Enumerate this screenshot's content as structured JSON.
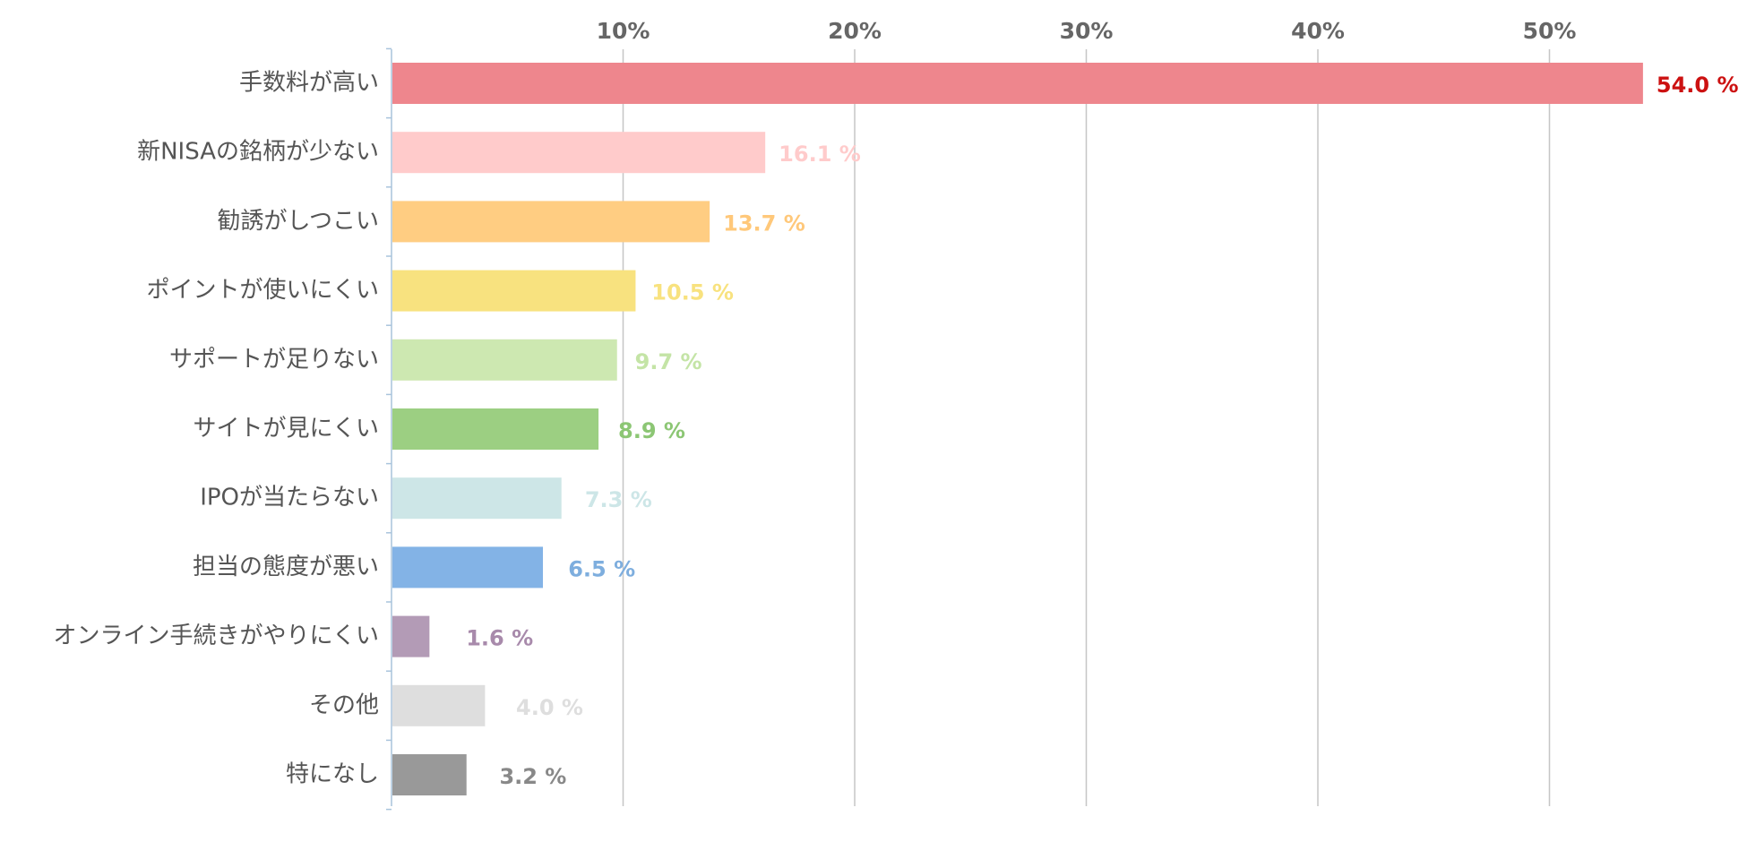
{
  "chart_data": {
    "type": "bar",
    "orientation": "horizontal",
    "title": "",
    "xlabel": "",
    "ylabel": "",
    "xlim": [
      0,
      55
    ],
    "x_ticks": [
      10,
      20,
      30,
      40,
      50
    ],
    "x_tick_labels": [
      "10%",
      "20%",
      "30%",
      "40%",
      "50%"
    ],
    "x_axis_position": "top",
    "grid": true,
    "legend": "none",
    "categories": [
      "手数料が高い",
      "新NISAの銘柄が少ない",
      "勧誘がしつこい",
      "ポイントが使いにくい",
      "サポートが足りない",
      "サイトが見にくい",
      "IPOが当たらない",
      "担当の態度が悪い",
      "オンライン手続きがやりにくい",
      "その他",
      "特になし"
    ],
    "values": [
      54.0,
      16.1,
      13.7,
      10.5,
      9.7,
      8.9,
      7.3,
      6.5,
      1.6,
      4.0,
      3.2
    ],
    "value_labels": [
      "54.0 %",
      "16.1 %",
      "13.7 %",
      "10.5 %",
      "9.7 %",
      "8.9 %",
      "7.3 %",
      "6.5 %",
      "1.6 %",
      "4.0 %",
      "3.2 %"
    ],
    "bar_colors": [
      "#ee868d",
      "#ffcbcb",
      "#ffcd82",
      "#f8e27f",
      "#cde8b1",
      "#9ccf82",
      "#cde6e7",
      "#83b3e6",
      "#b39bb6",
      "#dedede",
      "#999999"
    ],
    "label_colors": [
      "#cc1111",
      "#ffcbcb",
      "#ffc87a",
      "#f8e27f",
      "#c4e4a6",
      "#8cc674",
      "#cde6e7",
      "#7eaede",
      "#a88aab",
      "#dedede",
      "#888888"
    ]
  }
}
